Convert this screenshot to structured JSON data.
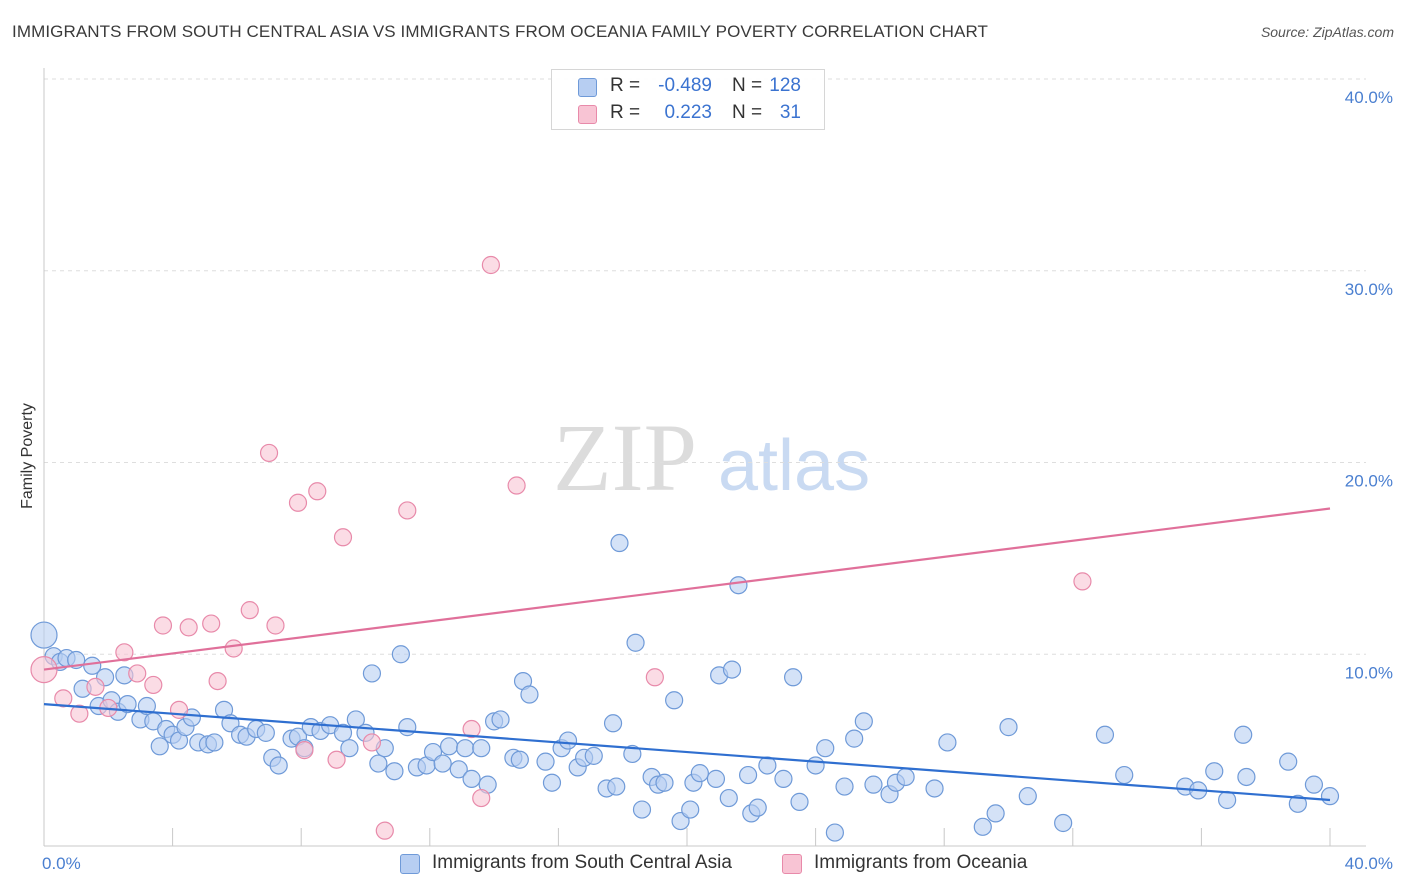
{
  "header": {
    "title": "IMMIGRANTS FROM SOUTH CENTRAL ASIA VS IMMIGRANTS FROM OCEANIA FAMILY POVERTY CORRELATION CHART",
    "source": "Source: ZipAtlas.com"
  },
  "watermark": {
    "zip": "ZIP",
    "atlas": "atlas"
  },
  "legend": {
    "r_label": "R =",
    "n_label": "N =",
    "series": [
      {
        "name": "Immigrants from South Central Asia",
        "r": "-0.489",
        "n": "128",
        "fill": "#b7cef2",
        "stroke": "#6f9ad8"
      },
      {
        "name": "Immigrants from Oceania",
        "r": "0.223",
        "n": "31",
        "fill": "#f8c4d4",
        "stroke": "#e88aaa"
      }
    ]
  },
  "chart_data": {
    "type": "scatter",
    "title": "IMMIGRANTS FROM SOUTH CENTRAL ASIA VS IMMIGRANTS FROM OCEANIA FAMILY POVERTY CORRELATION CHART",
    "xlabel": "",
    "ylabel": "Family Poverty",
    "xlim": [
      0,
      40
    ],
    "ylim": [
      0,
      40
    ],
    "x_tick_labels": [
      "0.0%",
      "40.0%"
    ],
    "y_tick_labels": [
      "10.0%",
      "20.0%",
      "30.0%",
      "40.0%"
    ],
    "y_ticks": [
      10,
      20,
      30,
      40
    ],
    "grid": true,
    "legend_position": "top-center",
    "series": [
      {
        "name": "Immigrants from South Central Asia",
        "color": "#6f9ad8",
        "fill": "#b7cef2",
        "trend_color": "#2f6fd0",
        "trend": [
          [
            0,
            7.4
          ],
          [
            40,
            2.4
          ]
        ],
        "points": [
          [
            0.0,
            11.0
          ],
          [
            0.3,
            9.9
          ],
          [
            0.5,
            9.6
          ],
          [
            0.7,
            9.8
          ],
          [
            1.0,
            9.7
          ],
          [
            1.2,
            8.2
          ],
          [
            1.5,
            9.4
          ],
          [
            1.7,
            7.3
          ],
          [
            1.9,
            8.8
          ],
          [
            2.1,
            7.6
          ],
          [
            2.3,
            7.0
          ],
          [
            2.5,
            8.9
          ],
          [
            2.6,
            7.4
          ],
          [
            3.0,
            6.6
          ],
          [
            3.2,
            7.3
          ],
          [
            3.4,
            6.5
          ],
          [
            3.6,
            5.2
          ],
          [
            3.8,
            6.1
          ],
          [
            4.0,
            5.8
          ],
          [
            4.2,
            5.5
          ],
          [
            4.4,
            6.2
          ],
          [
            4.6,
            6.7
          ],
          [
            4.8,
            5.4
          ],
          [
            5.1,
            5.3
          ],
          [
            5.3,
            5.4
          ],
          [
            5.6,
            7.1
          ],
          [
            5.8,
            6.4
          ],
          [
            6.1,
            5.8
          ],
          [
            6.3,
            5.7
          ],
          [
            6.6,
            6.1
          ],
          [
            6.9,
            5.9
          ],
          [
            7.1,
            4.6
          ],
          [
            7.3,
            4.2
          ],
          [
            7.7,
            5.6
          ],
          [
            7.9,
            5.7
          ],
          [
            8.1,
            5.1
          ],
          [
            8.3,
            6.2
          ],
          [
            8.6,
            6.0
          ],
          [
            8.9,
            6.3
          ],
          [
            9.3,
            5.9
          ],
          [
            9.5,
            5.1
          ],
          [
            9.7,
            6.6
          ],
          [
            10.0,
            5.9
          ],
          [
            10.2,
            9.0
          ],
          [
            10.4,
            4.3
          ],
          [
            10.6,
            5.1
          ],
          [
            10.9,
            3.9
          ],
          [
            11.1,
            10.0
          ],
          [
            11.3,
            6.2
          ],
          [
            11.6,
            4.1
          ],
          [
            11.9,
            4.2
          ],
          [
            12.1,
            4.9
          ],
          [
            12.4,
            4.3
          ],
          [
            12.6,
            5.2
          ],
          [
            12.9,
            4.0
          ],
          [
            13.1,
            5.1
          ],
          [
            13.3,
            3.5
          ],
          [
            13.6,
            5.1
          ],
          [
            13.8,
            3.2
          ],
          [
            14.0,
            6.5
          ],
          [
            14.2,
            6.6
          ],
          [
            14.6,
            4.6
          ],
          [
            14.8,
            4.5
          ],
          [
            14.9,
            8.6
          ],
          [
            15.1,
            7.9
          ],
          [
            15.6,
            4.4
          ],
          [
            15.8,
            3.3
          ],
          [
            16.1,
            5.1
          ],
          [
            16.3,
            5.5
          ],
          [
            16.6,
            4.1
          ],
          [
            16.8,
            4.6
          ],
          [
            17.1,
            4.7
          ],
          [
            17.5,
            3.0
          ],
          [
            17.7,
            6.4
          ],
          [
            17.8,
            3.1
          ],
          [
            17.9,
            15.8
          ],
          [
            18.3,
            4.8
          ],
          [
            18.4,
            10.6
          ],
          [
            18.6,
            1.9
          ],
          [
            18.9,
            3.6
          ],
          [
            19.1,
            3.2
          ],
          [
            19.3,
            3.3
          ],
          [
            19.6,
            7.6
          ],
          [
            19.8,
            1.3
          ],
          [
            20.1,
            1.9
          ],
          [
            20.2,
            3.3
          ],
          [
            20.4,
            3.8
          ],
          [
            20.9,
            3.5
          ],
          [
            21.0,
            8.9
          ],
          [
            21.3,
            2.5
          ],
          [
            21.4,
            9.2
          ],
          [
            21.6,
            13.6
          ],
          [
            21.9,
            3.7
          ],
          [
            22.0,
            1.7
          ],
          [
            22.2,
            2.0
          ],
          [
            22.5,
            4.2
          ],
          [
            23.0,
            3.5
          ],
          [
            23.3,
            8.8
          ],
          [
            23.5,
            2.3
          ],
          [
            24.0,
            4.2
          ],
          [
            24.3,
            5.1
          ],
          [
            24.6,
            0.7
          ],
          [
            24.9,
            3.1
          ],
          [
            25.2,
            5.6
          ],
          [
            25.5,
            6.5
          ],
          [
            25.8,
            3.2
          ],
          [
            26.3,
            2.7
          ],
          [
            26.5,
            3.3
          ],
          [
            26.8,
            3.6
          ],
          [
            27.7,
            3.0
          ],
          [
            28.1,
            5.4
          ],
          [
            29.2,
            1.0
          ],
          [
            29.6,
            1.7
          ],
          [
            30.0,
            6.2
          ],
          [
            30.6,
            2.6
          ],
          [
            31.7,
            1.2
          ],
          [
            33.0,
            5.8
          ],
          [
            33.6,
            3.7
          ],
          [
            35.5,
            3.1
          ],
          [
            35.9,
            2.9
          ],
          [
            36.4,
            3.9
          ],
          [
            36.8,
            2.4
          ],
          [
            37.3,
            5.8
          ],
          [
            37.4,
            3.6
          ],
          [
            38.7,
            4.4
          ],
          [
            39.0,
            2.2
          ],
          [
            39.5,
            3.2
          ],
          [
            40.0,
            2.6
          ]
        ]
      },
      {
        "name": "Immigrants from Oceania",
        "color": "#e88aaa",
        "fill": "#f8c4d4",
        "trend_color": "#e0709a",
        "trend": [
          [
            0,
            9.2
          ],
          [
            40,
            17.6
          ]
        ],
        "points": [
          [
            0.0,
            9.2
          ],
          [
            0.6,
            7.7
          ],
          [
            1.1,
            6.9
          ],
          [
            1.6,
            8.3
          ],
          [
            2.0,
            7.2
          ],
          [
            2.5,
            10.1
          ],
          [
            2.9,
            9.0
          ],
          [
            3.4,
            8.4
          ],
          [
            3.7,
            11.5
          ],
          [
            4.2,
            7.1
          ],
          [
            4.5,
            11.4
          ],
          [
            5.2,
            11.6
          ],
          [
            5.4,
            8.6
          ],
          [
            5.9,
            10.3
          ],
          [
            6.4,
            12.3
          ],
          [
            7.0,
            20.5
          ],
          [
            7.2,
            11.5
          ],
          [
            7.9,
            17.9
          ],
          [
            8.1,
            5.0
          ],
          [
            8.5,
            18.5
          ],
          [
            9.1,
            4.5
          ],
          [
            9.3,
            16.1
          ],
          [
            10.2,
            5.4
          ],
          [
            10.6,
            0.8
          ],
          [
            11.3,
            17.5
          ],
          [
            13.3,
            6.1
          ],
          [
            13.6,
            2.5
          ],
          [
            13.9,
            30.3
          ],
          [
            14.7,
            18.8
          ],
          [
            19.0,
            8.8
          ],
          [
            32.3,
            13.8
          ]
        ]
      }
    ]
  }
}
